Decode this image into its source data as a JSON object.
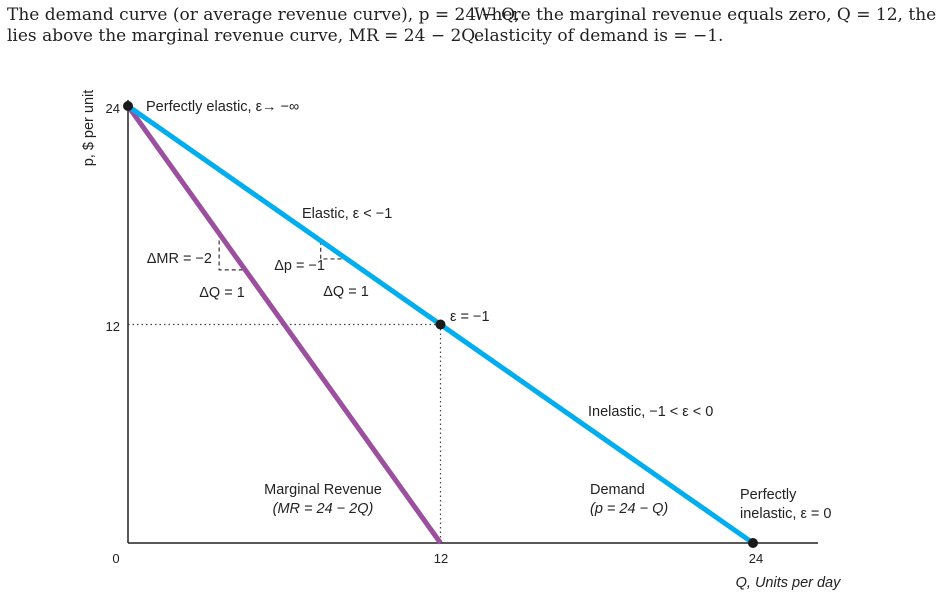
{
  "caption": {
    "left_line1": "The demand curve (or average revenue curve), p = 24 − Q,",
    "left_line2": "lies above the marginal revenue curve, MR = 24 − 2Q.",
    "right_line1": "Where the marginal revenue equals zero, Q = 12, the",
    "right_line2": "elasticity of demand is   = −1."
  },
  "chart_data": {
    "type": "line",
    "xlabel": "Q, Units per day",
    "ylabel": "p, $ per unit",
    "xlim": [
      0,
      24
    ],
    "ylim": [
      0,
      24
    ],
    "x_ticks": [
      "0",
      "12",
      "24"
    ],
    "y_ticks": [
      "12",
      "24"
    ],
    "series": [
      {
        "name": "Demand",
        "color": "#00aeef",
        "x": [
          0,
          24
        ],
        "y": [
          24,
          0
        ]
      },
      {
        "name": "Marginal Revenue",
        "color": "#9b4f9e",
        "x": [
          0,
          12
        ],
        "y": [
          24,
          0
        ]
      }
    ],
    "points": [
      {
        "x": 0,
        "y": 24
      },
      {
        "x": 12,
        "y": 12
      },
      {
        "x": 24,
        "y": 0
      }
    ],
    "guides": {
      "y_level": 12,
      "x_level": 12
    },
    "annotations": {
      "perfectly_elastic": "Perfectly elastic, ε→ −∞",
      "elastic": "Elastic, ε < −1",
      "unit_elastic": "ε = −1",
      "inelastic": "Inelastic, −1 < ε < 0",
      "perfectly_inelastic_1": "Perfectly",
      "perfectly_inelastic_2": "inelastic, ε = 0",
      "mr_step_delta": "ΔMR = −2",
      "mr_step_q": "ΔQ = 1",
      "p_step_delta": "Δp = −1",
      "p_step_q": "ΔQ = 1",
      "mr_label_1": "Marginal Revenue",
      "mr_label_2": "(MR = 24 − 2Q)",
      "demand_label_1": "Demand",
      "demand_label_2": "(p = 24 − Q)"
    },
    "grid": false
  }
}
